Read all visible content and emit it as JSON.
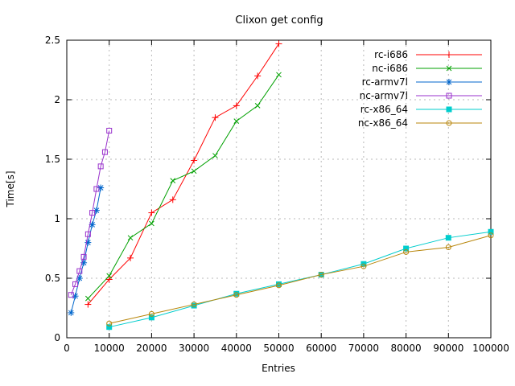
{
  "chart_data": {
    "type": "line",
    "title": "Clixon get config",
    "xlabel": "Entries",
    "ylabel": "Time[s]",
    "xlim": [
      0,
      100000
    ],
    "ylim": [
      0,
      2.5
    ],
    "xticks": [
      0,
      10000,
      20000,
      30000,
      40000,
      50000,
      60000,
      70000,
      80000,
      90000,
      100000
    ],
    "xtick_labels": [
      "0",
      "10000",
      "20000",
      "30000",
      "40000",
      "50000",
      "60000",
      "70000",
      "80000",
      "90000",
      "100000"
    ],
    "yticks": [
      0,
      0.5,
      1,
      1.5,
      2,
      2.5
    ],
    "ytick_labels": [
      "0",
      "0.5",
      "1",
      "1.5",
      "2",
      "2.5"
    ],
    "grid": true,
    "legend_position": "top-right",
    "series": [
      {
        "name": "rc-i686",
        "color": "#ff0000",
        "marker": "plus",
        "x": [
          5000,
          10000,
          15000,
          20000,
          25000,
          30000,
          35000,
          40000,
          45000,
          50000
        ],
        "y": [
          0.28,
          0.49,
          0.67,
          1.05,
          1.16,
          1.49,
          1.85,
          1.95,
          2.2,
          2.47
        ]
      },
      {
        "name": "nc-i686",
        "color": "#00a000",
        "marker": "cross",
        "x": [
          5000,
          10000,
          15000,
          20000,
          25000,
          30000,
          35000,
          40000,
          45000,
          50000
        ],
        "y": [
          0.33,
          0.52,
          0.84,
          0.96,
          1.32,
          1.4,
          1.53,
          1.82,
          1.95,
          2.21
        ]
      },
      {
        "name": "rc-armv7l",
        "color": "#0066cc",
        "marker": "asterisk",
        "x": [
          1000,
          2000,
          3000,
          4000,
          5000,
          6000,
          7000,
          8000
        ],
        "y": [
          0.21,
          0.35,
          0.5,
          0.63,
          0.8,
          0.95,
          1.07,
          1.26
        ]
      },
      {
        "name": "nc-armv7l",
        "color": "#9932cc",
        "marker": "square-open",
        "x": [
          1000,
          2000,
          3000,
          4000,
          5000,
          6000,
          7000,
          8000,
          9000,
          10000
        ],
        "y": [
          0.36,
          0.45,
          0.56,
          0.68,
          0.87,
          1.05,
          1.25,
          1.44,
          1.56,
          1.74
        ]
      },
      {
        "name": "rc-x86_64",
        "color": "#00cdcd",
        "marker": "square-filled",
        "x": [
          10000,
          20000,
          30000,
          40000,
          50000,
          60000,
          70000,
          80000,
          90000,
          100000
        ],
        "y": [
          0.09,
          0.17,
          0.27,
          0.37,
          0.45,
          0.53,
          0.62,
          0.75,
          0.84,
          0.89
        ]
      },
      {
        "name": "nc-x86_64",
        "color": "#b8860b",
        "marker": "circle-open",
        "x": [
          10000,
          20000,
          30000,
          40000,
          50000,
          60000,
          70000,
          80000,
          90000,
          100000
        ],
        "y": [
          0.12,
          0.2,
          0.28,
          0.36,
          0.44,
          0.53,
          0.6,
          0.72,
          0.76,
          0.86
        ]
      }
    ]
  }
}
